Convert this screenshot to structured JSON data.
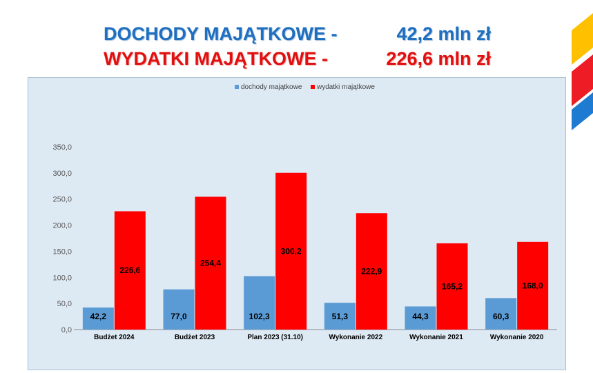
{
  "header": {
    "line1_label": "DOCHODY MAJĄTKOWE -",
    "line1_value": "42,2 mln zł",
    "line2_label": "WYDATKI MAJĄTKOWE   -",
    "line2_value": "226,6 mln zł"
  },
  "colors": {
    "title_blue": "#1f6fc0",
    "title_red": "#e01010",
    "series_income": "#5b9bd5",
    "series_expense": "#ff0000",
    "deco_yellow": "#ffc000",
    "deco_red": "#ee1c25",
    "deco_blue": "#1f7ad1"
  },
  "chart_data": {
    "type": "bar",
    "categories": [
      "Budżet 2024",
      "Budżet 2023",
      "Plan 2023 (31.10)",
      "Wykonanie 2022",
      "Wykonanie 2021",
      "Wykonanie 2020"
    ],
    "series": [
      {
        "name": "dochody majątkowe",
        "values": [
          42.2,
          77.0,
          102.3,
          51.3,
          44.3,
          60.3
        ],
        "labels": [
          "42,2",
          "77,0",
          "102,3",
          "51,3",
          "44,3",
          "60,3"
        ],
        "color": "#5b9bd5"
      },
      {
        "name": "wydatki majątkowe",
        "values": [
          226.6,
          254.4,
          300.2,
          222.9,
          165.2,
          168.0
        ],
        "labels": [
          "226,6",
          "254,4",
          "300,2",
          "222,9",
          "165,2",
          "168,0"
        ],
        "color": "#ff0000"
      }
    ],
    "yticks": [
      "0,0",
      "50,0",
      "100,0",
      "150,0",
      "200,0",
      "250,0",
      "300,0",
      "350,0"
    ],
    "ylim": [
      0,
      350
    ],
    "grid": false,
    "legend_position": "top-center"
  }
}
